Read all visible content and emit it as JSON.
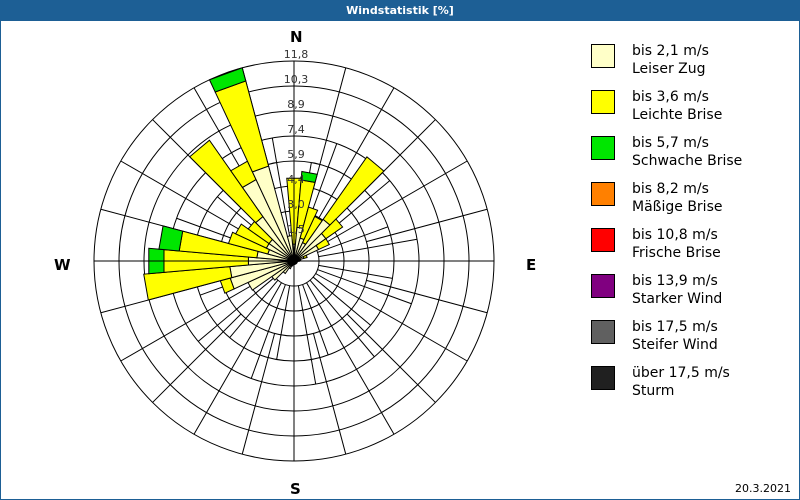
{
  "title": "Windstatistik [%]",
  "date": "20.3.2021",
  "directions": {
    "n": "N",
    "e": "E",
    "s": "S",
    "w": "W"
  },
  "ring_labels": [
    "1,5",
    "3,0",
    "4,4",
    "5,9",
    "7,4",
    "8,9",
    "10,3",
    "11,8"
  ],
  "legend": [
    {
      "range": "bis 2,1 m/s",
      "name": "Leiser Zug",
      "color": "#ffffc8"
    },
    {
      "range": "bis 3,6 m/s",
      "name": "Leichte Brise",
      "color": "#ffff00"
    },
    {
      "range": "bis 5,7 m/s",
      "name": "Schwache Brise",
      "color": "#00e600"
    },
    {
      "range": "bis 8,2 m/s",
      "name": "Mäßige Brise",
      "color": "#ff8000"
    },
    {
      "range": "bis 10,8 m/s",
      "name": "Frische Brise",
      "color": "#ff0000"
    },
    {
      "range": "bis 13,9 m/s",
      "name": "Starker Wind",
      "color": "#800080"
    },
    {
      "range": "bis 17,5 m/s",
      "name": "Steifer Wind",
      "color": "#606060"
    },
    {
      "range": "über 17,5 m/s",
      "name": "Sturm",
      "color": "#202020"
    }
  ],
  "chart_data": {
    "type": "wind-rose",
    "title": "Windstatistik [%]",
    "rmax": 11.8,
    "ring_values": [
      1.5,
      3.0,
      4.4,
      5.9,
      7.4,
      8.9,
      10.3,
      11.8
    ],
    "sector_width_deg": 10,
    "series_names": [
      "bis 2,1 m/s",
      "bis 3,6 m/s",
      "bis 5,7 m/s",
      "bis 8,2 m/s",
      "bis 10,8 m/s",
      "bis 13,9 m/s",
      "bis 17,5 m/s",
      "über 17,5 m/s"
    ],
    "sectors": [
      {
        "deg": 0,
        "cum": [
          1.0,
          4.9,
          4.9
        ]
      },
      {
        "deg": 10,
        "cum": [
          2.0,
          4.8,
          5.3
        ]
      },
      {
        "deg": 20,
        "cum": [
          1.4,
          3.3,
          3.3
        ]
      },
      {
        "deg": 30,
        "cum": [
          1.2,
          2.9,
          2.9
        ]
      },
      {
        "deg": 40,
        "cum": [
          3.0,
          7.5,
          7.5
        ]
      },
      {
        "deg": 50,
        "cum": [
          2.3,
          3.5,
          3.5
        ]
      },
      {
        "deg": 60,
        "cum": [
          1.6,
          2.3,
          2.3
        ]
      },
      {
        "deg": 70,
        "cum": [
          0.6,
          0.8,
          0.8
        ]
      },
      {
        "deg": 80,
        "cum": [
          0.3,
          0.4,
          0.4
        ]
      },
      {
        "deg": 90,
        "cum": [
          0.2,
          0.3,
          0.3
        ]
      },
      {
        "deg": 100,
        "cum": [
          0.2,
          0.2,
          0.2
        ]
      },
      {
        "deg": 110,
        "cum": [
          0.2,
          0.2,
          0.2
        ]
      },
      {
        "deg": 120,
        "cum": [
          0.2,
          0.2,
          0.2
        ]
      },
      {
        "deg": 130,
        "cum": [
          0.2,
          0.2,
          0.2
        ]
      },
      {
        "deg": 140,
        "cum": [
          0.2,
          0.2,
          0.2
        ]
      },
      {
        "deg": 150,
        "cum": [
          0.2,
          0.2,
          0.2
        ]
      },
      {
        "deg": 160,
        "cum": [
          0.2,
          0.2,
          0.2
        ]
      },
      {
        "deg": 170,
        "cum": [
          0.2,
          0.2,
          0.2
        ]
      },
      {
        "deg": 180,
        "cum": [
          0.2,
          0.2,
          0.2
        ]
      },
      {
        "deg": 190,
        "cum": [
          0.2,
          0.2,
          0.2
        ]
      },
      {
        "deg": 200,
        "cum": [
          0.3,
          0.3,
          0.3
        ]
      },
      {
        "deg": 210,
        "cum": [
          0.5,
          0.5,
          0.5
        ]
      },
      {
        "deg": 220,
        "cum": [
          0.9,
          0.9,
          0.9
        ]
      },
      {
        "deg": 230,
        "cum": [
          1.6,
          1.6,
          1.6
        ]
      },
      {
        "deg": 240,
        "cum": [
          3.0,
          3.0,
          3.0
        ]
      },
      {
        "deg": 250,
        "cum": [
          3.9,
          4.5,
          4.5
        ]
      },
      {
        "deg": 260,
        "cum": [
          3.8,
          8.9,
          8.9
        ]
      },
      {
        "deg": 270,
        "cum": [
          2.7,
          7.7,
          8.6
        ]
      },
      {
        "deg": 280,
        "cum": [
          2.2,
          6.8,
          8.0
        ]
      },
      {
        "deg": 290,
        "cum": [
          1.6,
          4.0,
          4.0
        ]
      },
      {
        "deg": 300,
        "cum": [
          1.8,
          3.8,
          3.8
        ]
      },
      {
        "deg": 310,
        "cum": [
          1.8,
          3.3,
          3.3
        ]
      },
      {
        "deg": 320,
        "cum": [
          3.2,
          8.7,
          8.7
        ]
      },
      {
        "deg": 330,
        "cum": [
          5.3,
          6.5,
          6.5
        ]
      },
      {
        "deg": 340,
        "cum": [
          5.8,
          11.0,
          11.8
        ]
      },
      {
        "deg": 350,
        "cum": [
          1.5,
          1.5,
          1.5
        ]
      }
    ]
  }
}
